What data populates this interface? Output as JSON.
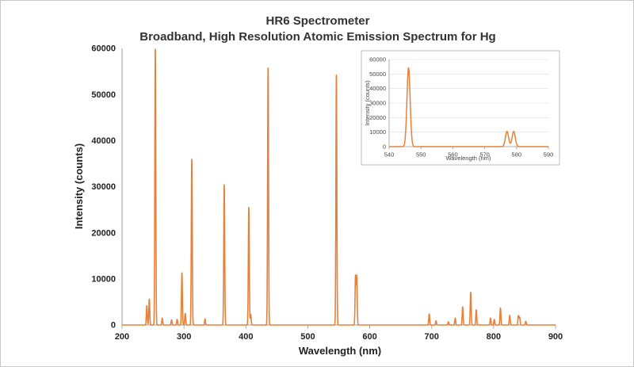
{
  "chart_data": [
    {
      "type": "line",
      "title": "HR6 Spectrometer",
      "subtitle": "Broadband, High Resolution Atomic Emission Spectrum for Hg",
      "xlabel": "Wavelength (nm)",
      "ylabel": "Intensity (counts)",
      "xlim": [
        200,
        900
      ],
      "ylim": [
        0,
        60000
      ],
      "xticks": [
        "200",
        "300",
        "400",
        "500",
        "600",
        "700",
        "800",
        "900"
      ],
      "yticks": [
        "0",
        "10000",
        "20000",
        "30000",
        "40000",
        "50000",
        "60000"
      ],
      "grid": false,
      "line_color": "#e8803a",
      "peaks": [
        {
          "x": 240,
          "y": 4200
        },
        {
          "x": 244,
          "y": 5600
        },
        {
          "x": 253.7,
          "y": 60000
        },
        {
          "x": 265,
          "y": 1500
        },
        {
          "x": 280,
          "y": 1100
        },
        {
          "x": 289,
          "y": 1200
        },
        {
          "x": 296.7,
          "y": 11300
        },
        {
          "x": 302,
          "y": 2500
        },
        {
          "x": 312.6,
          "y": 36000
        },
        {
          "x": 334,
          "y": 1300
        },
        {
          "x": 365,
          "y": 30500
        },
        {
          "x": 404.7,
          "y": 25500
        },
        {
          "x": 407.8,
          "y": 2300
        },
        {
          "x": 435.8,
          "y": 55800
        },
        {
          "x": 546.1,
          "y": 54200
        },
        {
          "x": 577,
          "y": 10500
        },
        {
          "x": 579,
          "y": 10500
        },
        {
          "x": 696,
          "y": 2400
        },
        {
          "x": 707,
          "y": 900
        },
        {
          "x": 727,
          "y": 700
        },
        {
          "x": 738,
          "y": 1500
        },
        {
          "x": 750,
          "y": 3900
        },
        {
          "x": 763,
          "y": 7100
        },
        {
          "x": 772,
          "y": 3300
        },
        {
          "x": 795,
          "y": 1500
        },
        {
          "x": 801,
          "y": 1200
        },
        {
          "x": 811,
          "y": 3700
        },
        {
          "x": 826,
          "y": 2100
        },
        {
          "x": 840,
          "y": 2000
        },
        {
          "x": 842,
          "y": 1700
        },
        {
          "x": 852,
          "y": 800
        }
      ]
    },
    {
      "type": "line",
      "xlabel": "Wavelength (nm)",
      "ylabel": "Intensity (counts)",
      "xlim": [
        540,
        590
      ],
      "ylim": [
        0,
        60000
      ],
      "xticks": [
        "540",
        "550",
        "560",
        "570",
        "580",
        "590"
      ],
      "yticks": [
        "0",
        "10000",
        "20000",
        "30000",
        "40000",
        "50000",
        "60000"
      ],
      "grid": true,
      "line_color": "#e8803a",
      "peaks": [
        {
          "x": 546.1,
          "y": 54200
        },
        {
          "x": 577.0,
          "y": 10500
        },
        {
          "x": 579.1,
          "y": 10500
        }
      ]
    }
  ]
}
